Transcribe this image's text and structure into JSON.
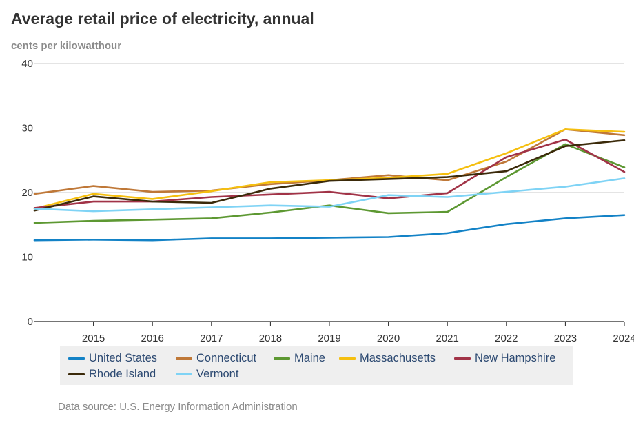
{
  "chart_data": {
    "type": "line",
    "title": "Average retail price of electricity, annual",
    "subtitle": "cents per kilowatthour",
    "x": [
      2014,
      2015,
      2016,
      2017,
      2018,
      2019,
      2020,
      2021,
      2022,
      2023,
      2024
    ],
    "x_tick_labels": [
      "2015",
      "2016",
      "2017",
      "2018",
      "2019",
      "2020",
      "2021",
      "2022",
      "2023",
      "2024"
    ],
    "y_tick_labels": [
      "0",
      "10",
      "20",
      "30",
      "40"
    ],
    "ylim": [
      0,
      40
    ],
    "grid": true,
    "legend_position": "bottom",
    "series": [
      {
        "name": "United States",
        "color": "#1382c6",
        "values": [
          12.6,
          12.7,
          12.6,
          12.9,
          12.9,
          13.0,
          13.1,
          13.7,
          15.1,
          16.0,
          16.5
        ]
      },
      {
        "name": "Connecticut",
        "color": "#bf7838",
        "values": [
          19.8,
          21.0,
          20.1,
          20.3,
          21.3,
          21.9,
          22.7,
          21.9,
          24.8,
          29.8,
          28.9
        ]
      },
      {
        "name": "Maine",
        "color": "#5d9832",
        "values": [
          15.3,
          15.6,
          15.8,
          16.0,
          16.9,
          18.0,
          16.8,
          17.0,
          22.4,
          27.5,
          23.9
        ]
      },
      {
        "name": "Massachusetts",
        "color": "#f5bf0f",
        "values": [
          17.5,
          19.8,
          19.0,
          20.2,
          21.6,
          21.9,
          22.3,
          22.9,
          26.1,
          29.8,
          29.4
        ]
      },
      {
        "name": "New Hampshire",
        "color": "#a13347",
        "values": [
          17.6,
          18.6,
          18.6,
          19.3,
          19.7,
          20.1,
          19.1,
          19.9,
          25.5,
          28.2,
          23.2
        ]
      },
      {
        "name": "Rhode Island",
        "color": "#3b2a0a",
        "values": [
          17.2,
          19.4,
          18.6,
          18.4,
          20.6,
          21.8,
          22.1,
          22.4,
          23.3,
          27.2,
          28.1
        ]
      },
      {
        "name": "Vermont",
        "color": "#7fd3f5",
        "values": [
          17.5,
          17.1,
          17.4,
          17.7,
          18.0,
          17.8,
          19.6,
          19.3,
          20.1,
          20.9,
          22.2
        ]
      }
    ],
    "source": "Data source: U.S. Energy Information Administration"
  }
}
